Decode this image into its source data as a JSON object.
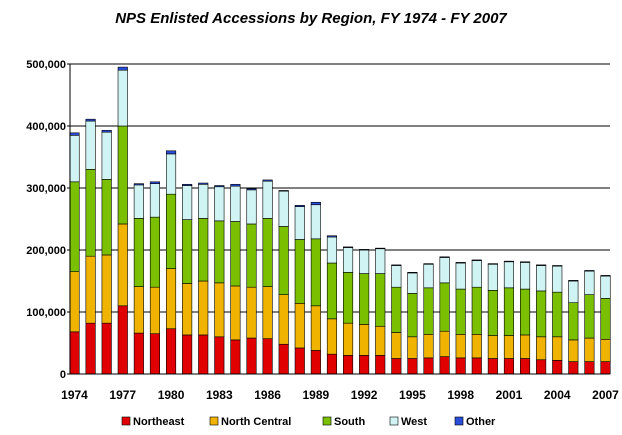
{
  "chart_data": {
    "type": "bar",
    "stacked": true,
    "title": "NPS Enlisted Accessions by Region, FY 1974 - FY 2007",
    "xlabel": "",
    "ylabel": "",
    "ylim": [
      0,
      500000
    ],
    "yticks": [
      0,
      100000,
      200000,
      300000,
      400000,
      500000
    ],
    "ytick_labels": [
      "0",
      "100,000",
      "200,000",
      "300,000",
      "400,000",
      "500,000"
    ],
    "grid": true,
    "legend_position": "bottom",
    "categories": [
      "1974",
      "1975",
      "1976",
      "1977",
      "1978",
      "1979",
      "1980",
      "1981",
      "1982",
      "1983",
      "1984",
      "1985",
      "1986",
      "1987",
      "1988",
      "1989",
      "1990",
      "1991",
      "1992",
      "1993",
      "1994",
      "1995",
      "1996",
      "1997",
      "1998",
      "1999",
      "2000",
      "2001",
      "2002",
      "2003",
      "2004",
      "2005",
      "2006",
      "2007"
    ],
    "xtick_labels": [
      "1974",
      "1977",
      "1980",
      "1983",
      "1986",
      "1989",
      "1992",
      "1995",
      "1998",
      "2001",
      "2004",
      "2007"
    ],
    "series": [
      {
        "name": "Northeast",
        "color": "#e00000",
        "values": [
          68000,
          82000,
          82000,
          110000,
          66000,
          65000,
          73000,
          63000,
          63000,
          60000,
          55000,
          58000,
          57000,
          48000,
          42000,
          38000,
          32000,
          30000,
          30000,
          30000,
          25000,
          25000,
          26000,
          28000,
          26000,
          26000,
          25000,
          25000,
          25000,
          23000,
          22000,
          20000,
          20000,
          20000
        ]
      },
      {
        "name": "North Central",
        "color": "#f0b400",
        "values": [
          97000,
          108000,
          110000,
          132000,
          75000,
          75000,
          97000,
          83000,
          87000,
          87000,
          87000,
          82000,
          84000,
          80000,
          72000,
          72000,
          57000,
          52000,
          50000,
          47000,
          42000,
          35000,
          38000,
          41000,
          38000,
          38000,
          37000,
          37000,
          38000,
          37000,
          38000,
          35000,
          38000,
          36000
        ]
      },
      {
        "name": "South",
        "color": "#7ac000",
        "values": [
          145000,
          140000,
          122000,
          158000,
          110000,
          113000,
          120000,
          103000,
          101000,
          100000,
          104000,
          102000,
          110000,
          110000,
          103000,
          108000,
          90000,
          82000,
          82000,
          85000,
          73000,
          70000,
          75000,
          78000,
          73000,
          76000,
          73000,
          77000,
          74000,
          74000,
          72000,
          60000,
          70000,
          66000
        ]
      },
      {
        "name": "West",
        "color": "#d0f4f4",
        "values": [
          75000,
          78000,
          76000,
          90000,
          54000,
          54000,
          65000,
          55000,
          55000,
          55000,
          57000,
          55000,
          60000,
          57000,
          53000,
          55000,
          42000,
          40000,
          38000,
          40000,
          35000,
          33000,
          38000,
          41000,
          42000,
          43000,
          42000,
          42000,
          43000,
          41000,
          42000,
          35000,
          38000,
          36000
        ]
      },
      {
        "name": "Other",
        "color": "#2a4cd8",
        "values": [
          4000,
          3000,
          3000,
          5000,
          2000,
          3000,
          5000,
          2000,
          2000,
          2000,
          3000,
          2000,
          2000,
          1000,
          2000,
          4000,
          2000,
          1000,
          1000,
          1000,
          1000,
          1000,
          1000,
          1000,
          1000,
          1000,
          1000,
          1000,
          1000,
          1000,
          1000,
          1000,
          1000,
          1000
        ]
      }
    ]
  }
}
